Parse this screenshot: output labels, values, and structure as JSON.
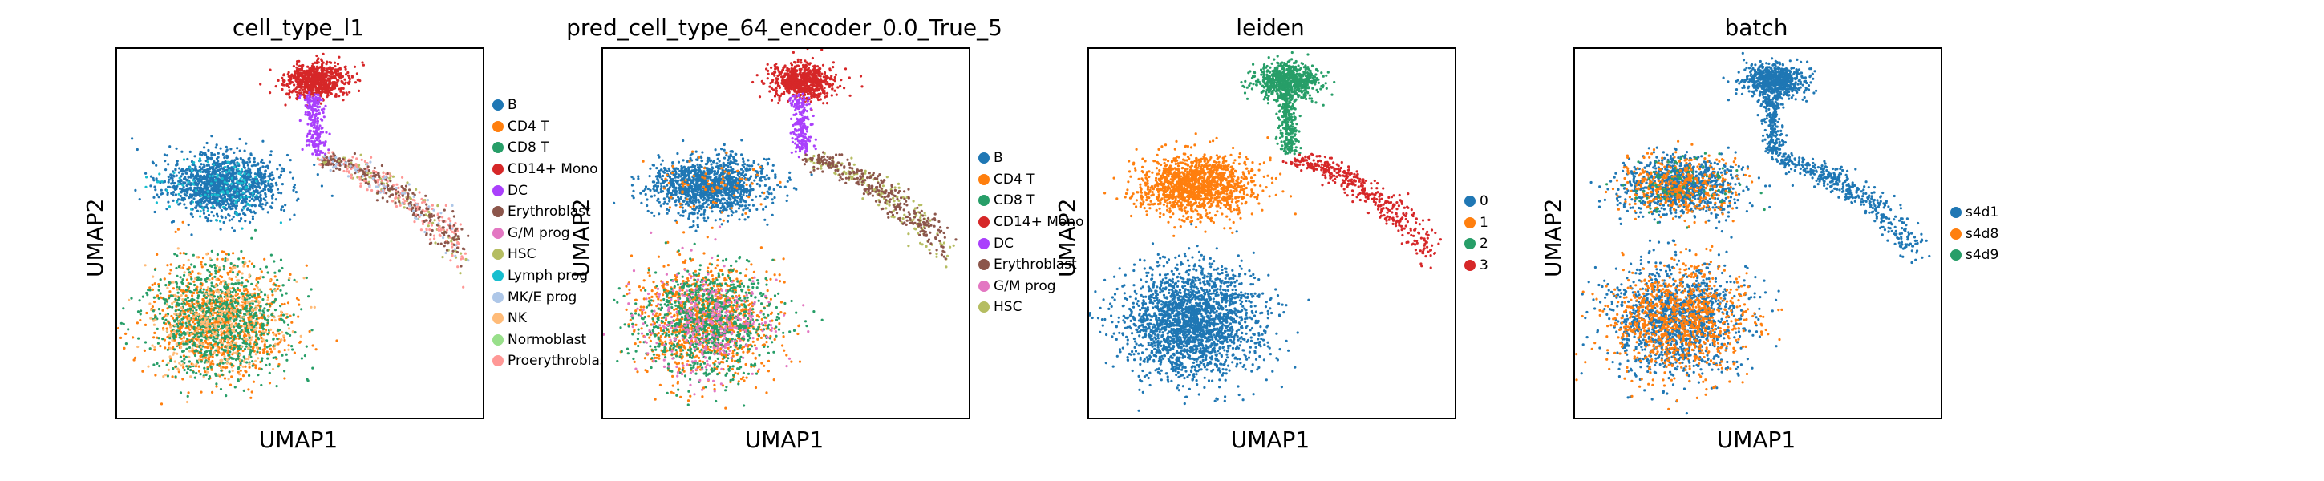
{
  "panels": [
    {
      "title": "cell_type_l1",
      "xlabel": "UMAP1",
      "ylabel": "UMAP2",
      "legend": [
        {
          "label": "B",
          "color": "#1f77b4"
        },
        {
          "label": "CD4 T",
          "color": "#ff7f0e"
        },
        {
          "label": "CD8 T",
          "color": "#279e68"
        },
        {
          "label": "CD14+ Mono",
          "color": "#d62728"
        },
        {
          "label": "DC",
          "color": "#aa40fc"
        },
        {
          "label": "Erythroblast",
          "color": "#8c564b"
        },
        {
          "label": "G/M prog",
          "color": "#e377c2"
        },
        {
          "label": "HSC",
          "color": "#b5bd61"
        },
        {
          "label": "Lymph prog",
          "color": "#17becf"
        },
        {
          "label": "MK/E prog",
          "color": "#aec7e8"
        },
        {
          "label": "NK",
          "color": "#ffbb78"
        },
        {
          "label": "Normoblast",
          "color": "#98df8a"
        },
        {
          "label": "Proerythroblast",
          "color": "#ff9896"
        }
      ]
    },
    {
      "title": "pred_cell_type_64_encoder_0.0_True_5",
      "xlabel": "UMAP1",
      "ylabel": "UMAP2",
      "legend": [
        {
          "label": "B",
          "color": "#1f77b4"
        },
        {
          "label": "CD4 T",
          "color": "#ff7f0e"
        },
        {
          "label": "CD8 T",
          "color": "#279e68"
        },
        {
          "label": "CD14+ Mono",
          "color": "#d62728"
        },
        {
          "label": "DC",
          "color": "#aa40fc"
        },
        {
          "label": "Erythroblast",
          "color": "#8c564b"
        },
        {
          "label": "G/M prog",
          "color": "#e377c2"
        },
        {
          "label": "HSC",
          "color": "#b5bd61"
        }
      ]
    },
    {
      "title": "leiden",
      "xlabel": "UMAP1",
      "ylabel": "UMAP2",
      "legend": [
        {
          "label": "0",
          "color": "#1f77b4"
        },
        {
          "label": "1",
          "color": "#ff7f0e"
        },
        {
          "label": "2",
          "color": "#279e68"
        },
        {
          "label": "3",
          "color": "#d62728"
        }
      ]
    },
    {
      "title": "batch",
      "xlabel": "UMAP1",
      "ylabel": "UMAP2",
      "legend": [
        {
          "label": "s4d1",
          "color": "#1f77b4"
        },
        {
          "label": "s4d8",
          "color": "#ff7f0e"
        },
        {
          "label": "s4d9",
          "color": "#279e68"
        }
      ]
    }
  ],
  "chart_data": [
    {
      "type": "scatter",
      "title": "cell_type_l1",
      "xlabel": "UMAP1",
      "ylabel": "UMAP2",
      "legend_position": "right",
      "grid": false,
      "series": [
        {
          "name": "B",
          "color": "#1f77b4"
        },
        {
          "name": "CD4 T",
          "color": "#ff7f0e"
        },
        {
          "name": "CD8 T",
          "color": "#279e68"
        },
        {
          "name": "CD14+ Mono",
          "color": "#d62728"
        },
        {
          "name": "DC",
          "color": "#aa40fc"
        },
        {
          "name": "Erythroblast",
          "color": "#8c564b"
        },
        {
          "name": "G/M prog",
          "color": "#e377c2"
        },
        {
          "name": "HSC",
          "color": "#b5bd61"
        },
        {
          "name": "Lymph prog",
          "color": "#17becf"
        },
        {
          "name": "MK/E prog",
          "color": "#aec7e8"
        },
        {
          "name": "NK",
          "color": "#ffbb78"
        },
        {
          "name": "Normoblast",
          "color": "#98df8a"
        },
        {
          "name": "Proerythroblast",
          "color": "#ff9896"
        }
      ]
    },
    {
      "type": "scatter",
      "title": "pred_cell_type_64_encoder_0.0_True_5",
      "xlabel": "UMAP1",
      "ylabel": "UMAP2",
      "legend_position": "right",
      "grid": false,
      "series": [
        {
          "name": "B",
          "color": "#1f77b4"
        },
        {
          "name": "CD4 T",
          "color": "#ff7f0e"
        },
        {
          "name": "CD8 T",
          "color": "#279e68"
        },
        {
          "name": "CD14+ Mono",
          "color": "#d62728"
        },
        {
          "name": "DC",
          "color": "#aa40fc"
        },
        {
          "name": "Erythroblast",
          "color": "#8c564b"
        },
        {
          "name": "G/M prog",
          "color": "#e377c2"
        },
        {
          "name": "HSC",
          "color": "#b5bd61"
        }
      ]
    },
    {
      "type": "scatter",
      "title": "leiden",
      "xlabel": "UMAP1",
      "ylabel": "UMAP2",
      "legend_position": "right",
      "grid": false,
      "series": [
        {
          "name": "0",
          "color": "#1f77b4"
        },
        {
          "name": "1",
          "color": "#ff7f0e"
        },
        {
          "name": "2",
          "color": "#279e68"
        },
        {
          "name": "3",
          "color": "#d62728"
        }
      ]
    },
    {
      "type": "scatter",
      "title": "batch",
      "xlabel": "UMAP1",
      "ylabel": "UMAP2",
      "legend_position": "right",
      "grid": false,
      "series": [
        {
          "name": "s4d1",
          "color": "#1f77b4"
        },
        {
          "name": "s4d8",
          "color": "#ff7f0e"
        },
        {
          "name": "s4d9",
          "color": "#279e68"
        }
      ]
    }
  ]
}
